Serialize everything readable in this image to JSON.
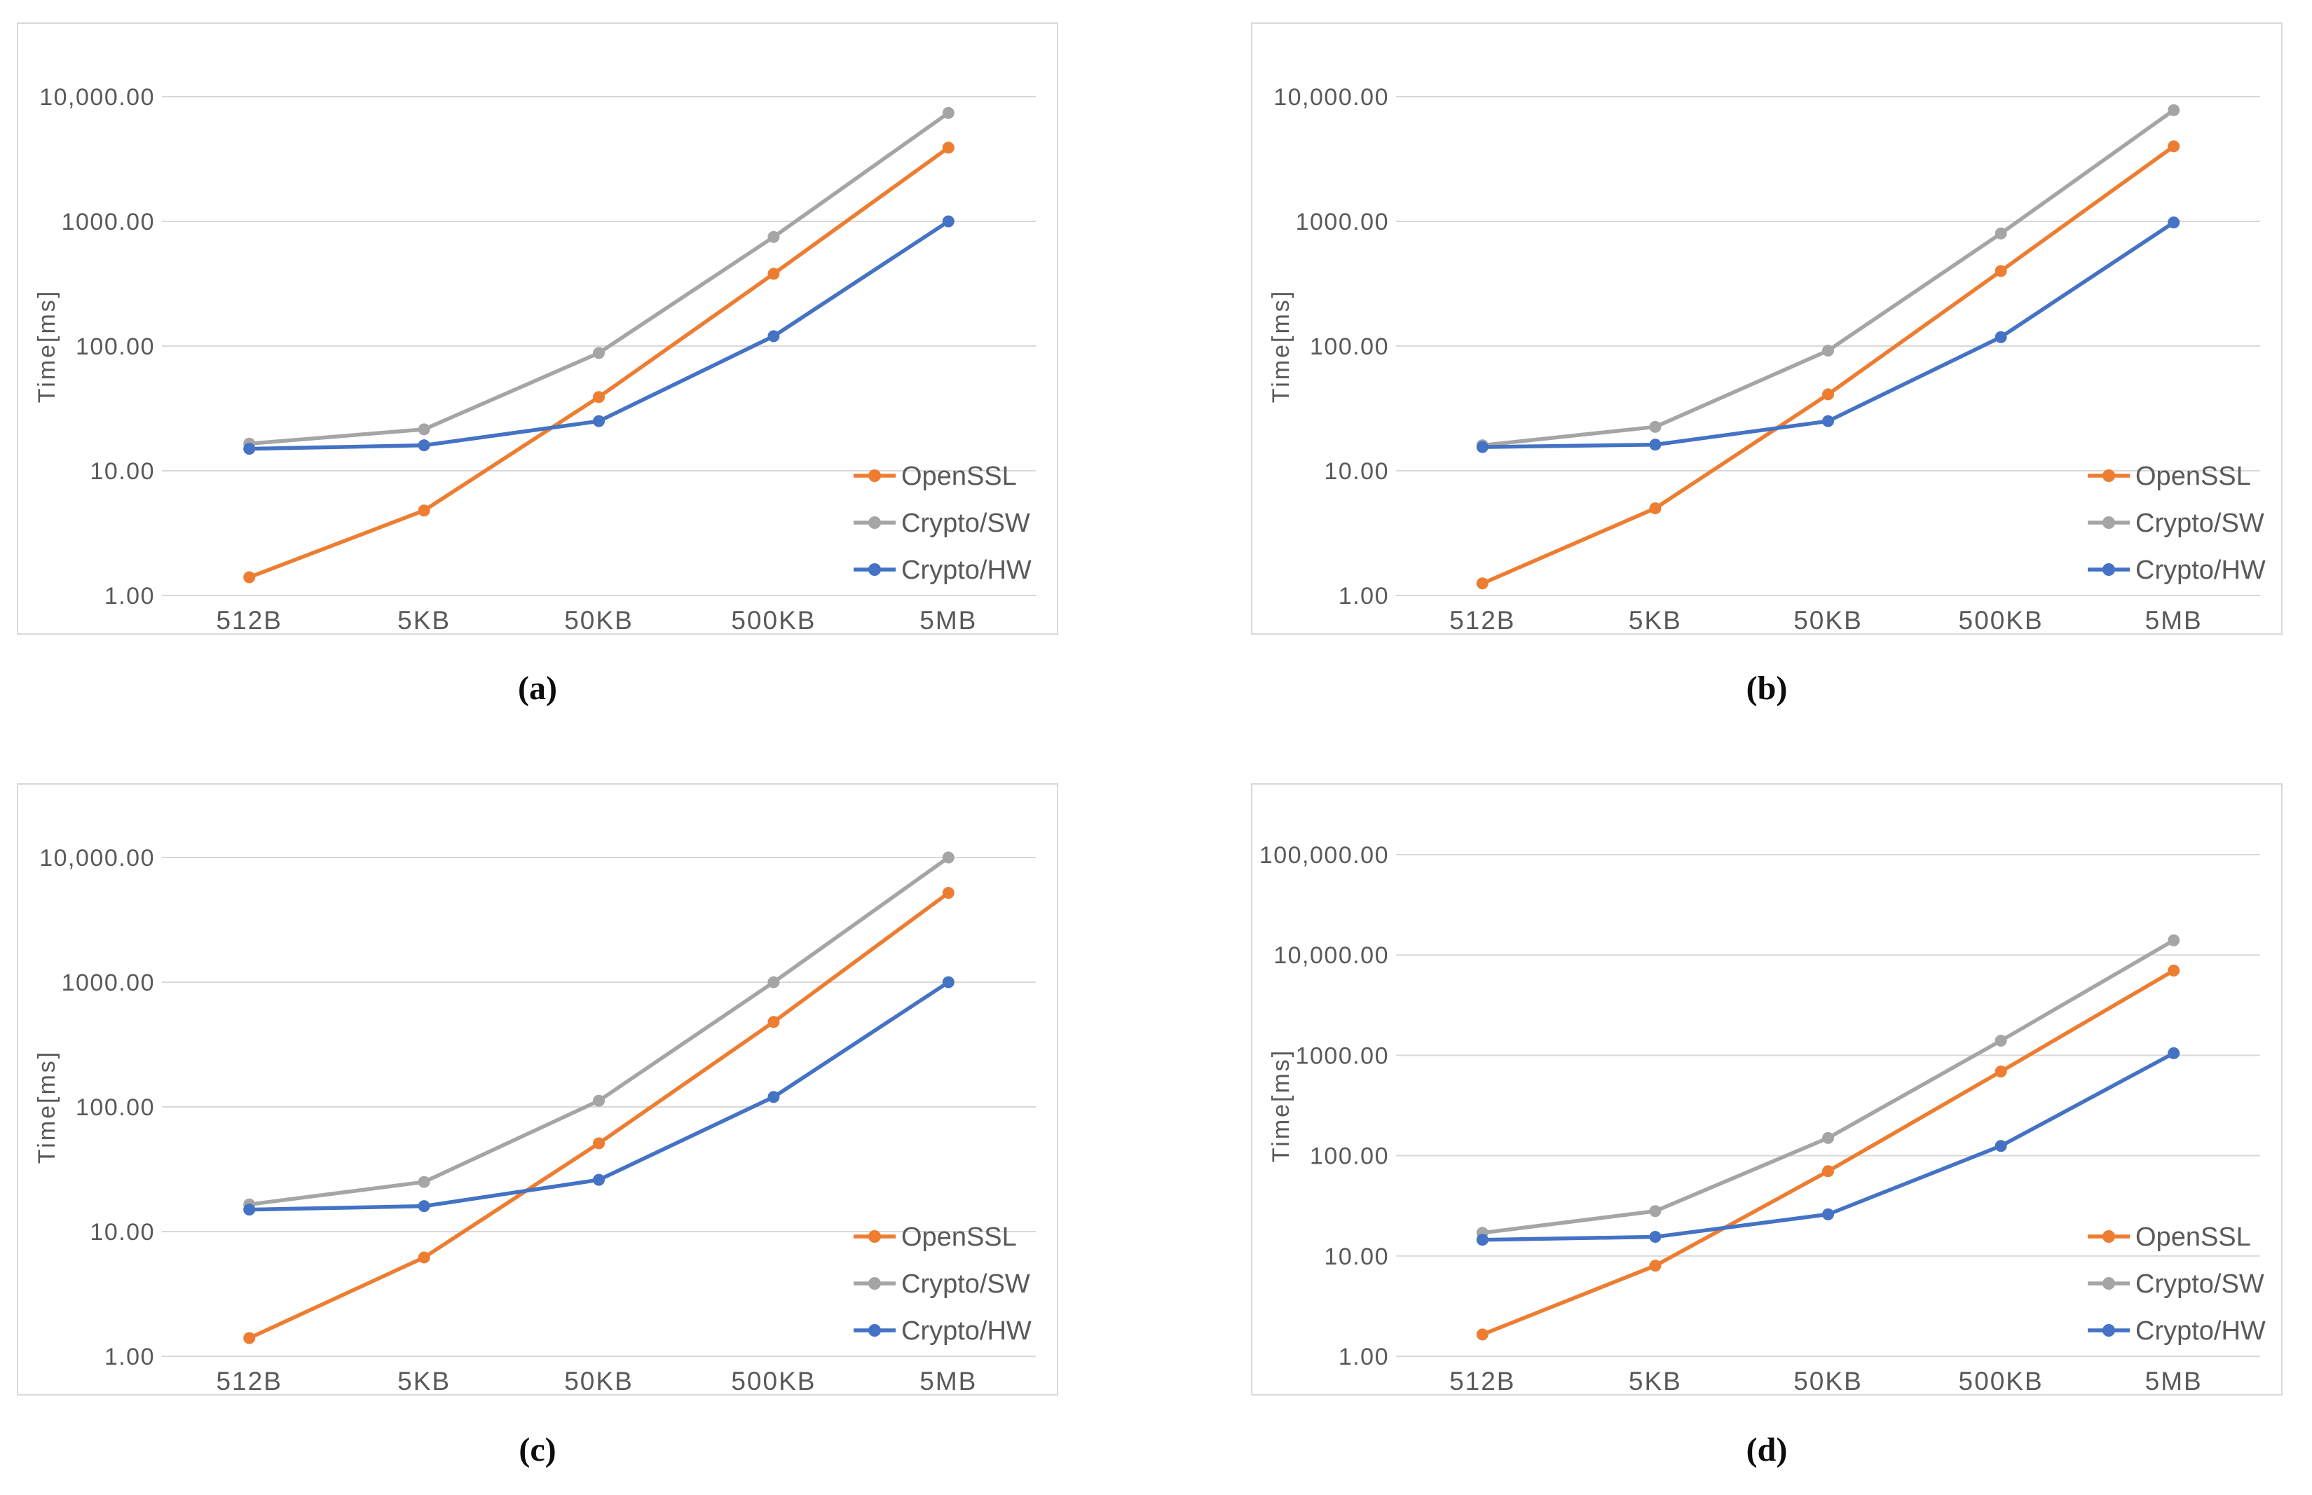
{
  "page": {
    "background": "#ffffff"
  },
  "style": {
    "axis_text_color": "#595959",
    "grid_color": "#D9D9D9",
    "panel_border_color": "#D9D9D9",
    "series_colors": {
      "OpenSSL": "#ED7D31",
      "Crypto/SW": "#A5A5A5",
      "Crypto/HW": "#4472C4"
    }
  },
  "legend": {
    "items": [
      "OpenSSL",
      "Crypto/SW",
      "Crypto/HW"
    ],
    "position": "bottom-right-inside"
  },
  "chart_data": [
    {
      "id": "a",
      "caption": "(a)",
      "type": "line",
      "yscale": "log",
      "grid": true,
      "ylabel": "Time[ms]",
      "ylim": [
        1,
        10000
      ],
      "ytick_labels": [
        "10,000.00",
        "1000.00",
        "100.00",
        "10.00",
        "1.00"
      ],
      "categories": [
        "512B",
        "5KB",
        "50KB",
        "500KB",
        "5MB"
      ],
      "series": [
        {
          "name": "OpenSSL",
          "color": "#ED7D31",
          "values": [
            1.4,
            4.8,
            39,
            380,
            3900
          ]
        },
        {
          "name": "Crypto/SW",
          "color": "#A5A5A5",
          "values": [
            16.5,
            21.5,
            88,
            750,
            7400
          ]
        },
        {
          "name": "Crypto/HW",
          "color": "#4472C4",
          "values": [
            15,
            16,
            25,
            120,
            1000
          ]
        }
      ]
    },
    {
      "id": "b",
      "caption": "(b)",
      "type": "line",
      "yscale": "log",
      "grid": true,
      "ylabel": "Time[ms]",
      "ylim": [
        1,
        10000
      ],
      "ytick_labels": [
        "10,000.00",
        "1000.00",
        "100.00",
        "10.00",
        "1.00"
      ],
      "categories": [
        "512B",
        "5KB",
        "50KB",
        "500KB",
        "5MB"
      ],
      "series": [
        {
          "name": "OpenSSL",
          "color": "#ED7D31",
          "values": [
            1.25,
            5,
            41,
            400,
            4000
          ]
        },
        {
          "name": "Crypto/SW",
          "color": "#A5A5A5",
          "values": [
            16,
            22.5,
            92,
            800,
            7800
          ]
        },
        {
          "name": "Crypto/HW",
          "color": "#4472C4",
          "values": [
            15.5,
            16.2,
            25,
            118,
            980
          ]
        }
      ]
    },
    {
      "id": "c",
      "caption": "(c)",
      "type": "line",
      "yscale": "log",
      "grid": true,
      "ylabel": "Time[ms]",
      "ylim": [
        1,
        10000
      ],
      "ytick_labels": [
        "10,000.00",
        "1000.00",
        "100.00",
        "10.00",
        "1.00"
      ],
      "categories": [
        "512B",
        "5KB",
        "50KB",
        "500KB",
        "5MB"
      ],
      "series": [
        {
          "name": "OpenSSL",
          "color": "#ED7D31",
          "values": [
            1.4,
            6.2,
            51,
            480,
            5200
          ]
        },
        {
          "name": "Crypto/SW",
          "color": "#A5A5A5",
          "values": [
            16.5,
            25,
            112,
            1000,
            10000
          ]
        },
        {
          "name": "Crypto/HW",
          "color": "#4472C4",
          "values": [
            15,
            16,
            26,
            120,
            1000
          ]
        }
      ]
    },
    {
      "id": "d",
      "caption": "(d)",
      "type": "line",
      "yscale": "log",
      "grid": true,
      "ylabel": "Time[ms]",
      "ylim": [
        1,
        100000
      ],
      "ytick_labels": [
        "100,000.00",
        "10,000.00",
        "1000.00",
        "100.00",
        "10.00",
        "1.00"
      ],
      "categories": [
        "512B",
        "5KB",
        "50KB",
        "500KB",
        "5MB"
      ],
      "series": [
        {
          "name": "OpenSSL",
          "color": "#ED7D31",
          "values": [
            1.65,
            8,
            70,
            690,
            7000
          ]
        },
        {
          "name": "Crypto/SW",
          "color": "#A5A5A5",
          "values": [
            17,
            28,
            150,
            1400,
            14000
          ]
        },
        {
          "name": "Crypto/HW",
          "color": "#4472C4",
          "values": [
            14.5,
            15.5,
            26,
            125,
            1050
          ]
        }
      ]
    }
  ]
}
